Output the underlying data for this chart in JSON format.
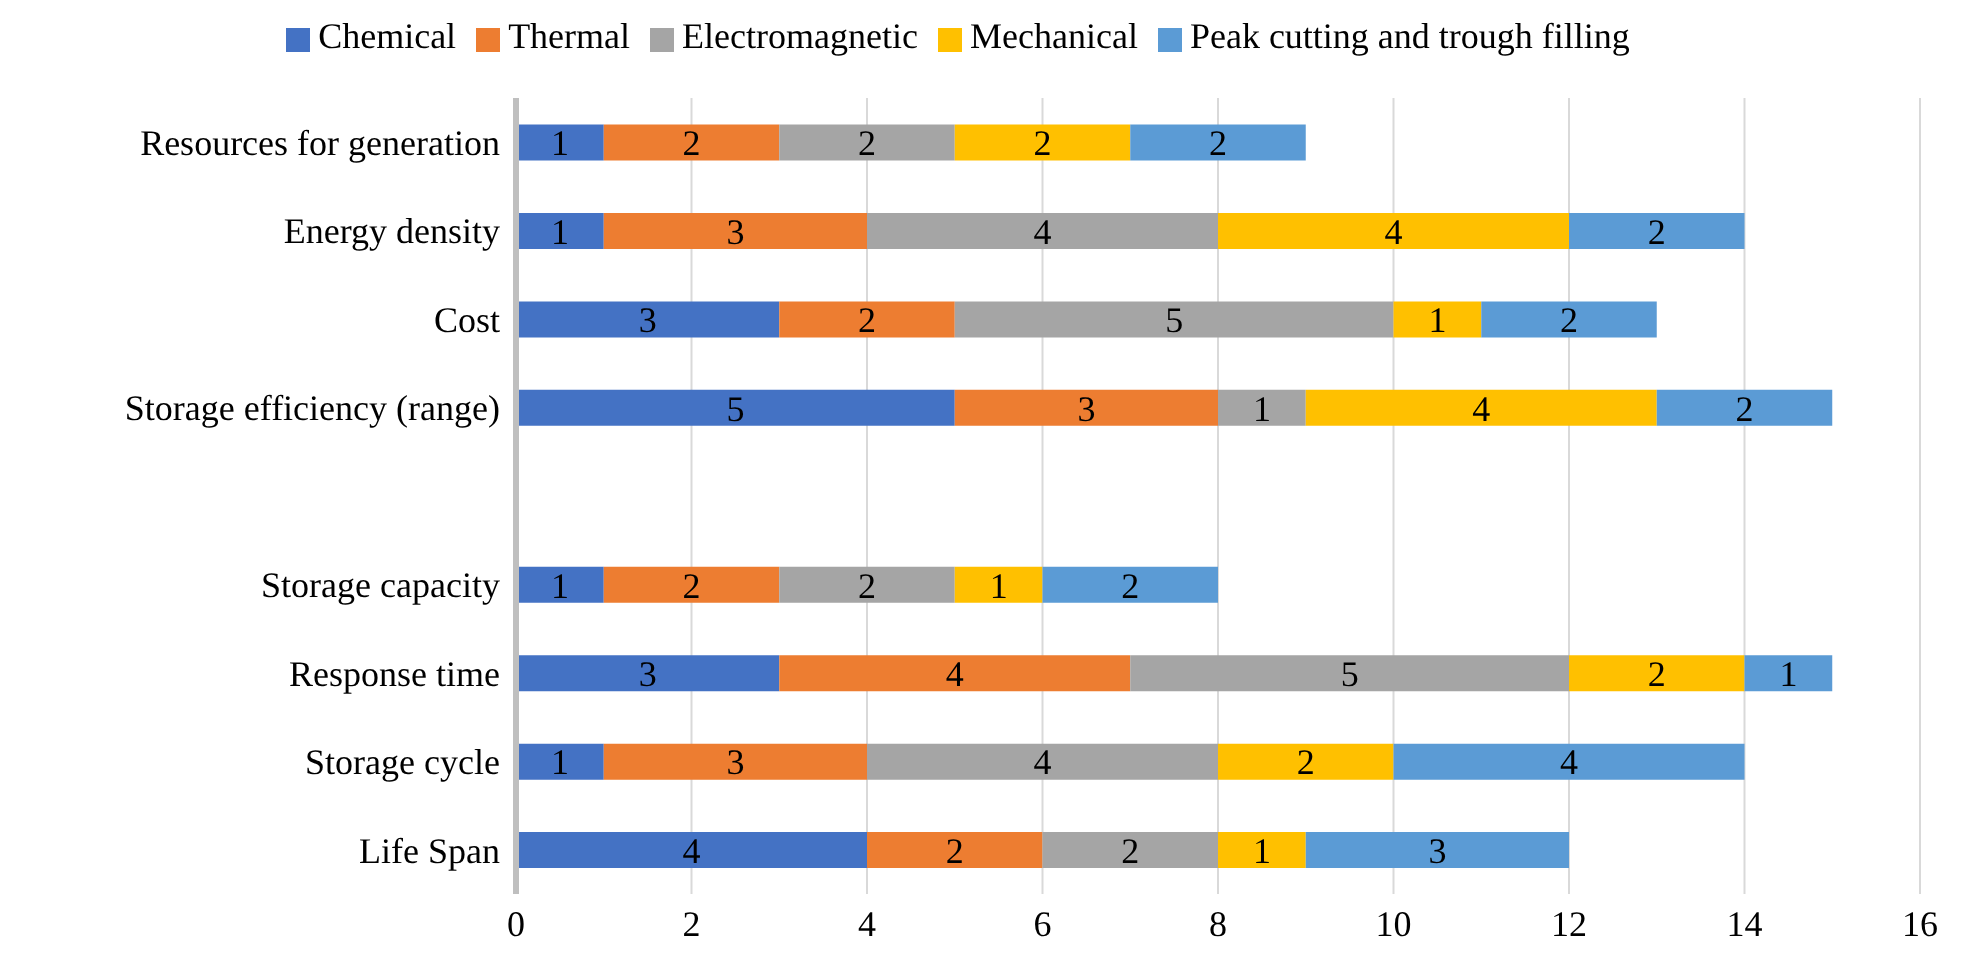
{
  "chart_data": {
    "type": "bar",
    "orientation": "horizontal",
    "stacked": true,
    "categories": [
      "Resources for generation",
      "Energy density",
      "Cost",
      "Storage efficiency (range)",
      null,
      "Storage capacity",
      "Response time",
      "Storage cycle",
      "Life Span"
    ],
    "series": [
      {
        "name": "Chemical",
        "color": "#4472c4",
        "values": [
          1,
          1,
          3,
          5,
          null,
          1,
          3,
          1,
          4
        ]
      },
      {
        "name": "Thermal",
        "color": "#ed7d31",
        "values": [
          2,
          3,
          2,
          3,
          null,
          2,
          4,
          3,
          2
        ]
      },
      {
        "name": "Electromagnetic",
        "color": "#a5a5a5",
        "values": [
          2,
          4,
          5,
          1,
          null,
          2,
          5,
          4,
          2
        ]
      },
      {
        "name": "Mechanical",
        "color": "#ffc000",
        "values": [
          2,
          4,
          1,
          4,
          null,
          1,
          2,
          2,
          1
        ]
      },
      {
        "name": "Peak cutting and trough filling",
        "color": "#5b9bd5",
        "values": [
          2,
          2,
          2,
          2,
          null,
          2,
          1,
          4,
          3
        ]
      }
    ],
    "xlim": [
      0,
      16
    ],
    "xticks": [
      0,
      2,
      4,
      6,
      8,
      10,
      12,
      14,
      16
    ],
    "grid": "x",
    "legend": "top",
    "data_labels": true
  }
}
